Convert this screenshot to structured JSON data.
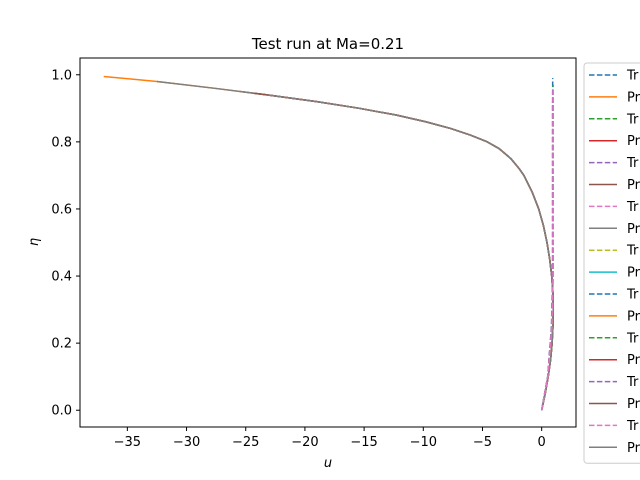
{
  "chart_data": {
    "type": "line",
    "title": "Test run at Ma=0.21",
    "xlabel": "u",
    "ylabel": "η",
    "xlim": [
      -39,
      2.9
    ],
    "ylim": [
      -0.05,
      1.05
    ],
    "xticks": [
      -35,
      -30,
      -25,
      -20,
      -15,
      -10,
      -5,
      0
    ],
    "xtick_labels": [
      "−35",
      "−30",
      "−25",
      "−20",
      "−15",
      "−10",
      "−5",
      "0"
    ],
    "yticks": [
      0.0,
      0.2,
      0.4,
      0.6,
      0.8,
      1.0
    ],
    "ytick_labels": [
      "0.0",
      "0.2",
      "0.4",
      "0.6",
      "0.8",
      "1.0"
    ],
    "grid": false,
    "legend_position": "right, clipped",
    "base_curve": {
      "y": [
        0,
        0.05,
        0.1,
        0.15,
        0.2,
        0.25,
        0.3,
        0.35,
        0.4,
        0.45,
        0.5,
        0.55,
        0.6,
        0.65,
        0.7,
        0.72,
        0.75,
        0.78,
        0.8,
        0.82,
        0.84,
        0.86,
        0.88,
        0.9,
        0.92,
        0.94,
        0.96,
        0.98,
        0.995
      ],
      "x": [
        0,
        0.3,
        0.55,
        0.75,
        0.88,
        0.95,
        0.98,
        0.95,
        0.85,
        0.68,
        0.45,
        0.15,
        -0.25,
        -0.8,
        -1.5,
        -1.9,
        -2.6,
        -3.6,
        -4.6,
        -6.0,
        -7.7,
        -9.8,
        -12.3,
        -15.4,
        -19.0,
        -23.2,
        -27.7,
        -32.5,
        -37
      ]
    },
    "series": [
      {
        "legend_label": "Tr",
        "color": "#1f77b4",
        "dashed": true,
        "kind": "vertical",
        "x": 0.93,
        "ytop": 0.99
      },
      {
        "legend_label": "Pr",
        "color": "#ff7f0e",
        "dashed": false,
        "kind": "curve",
        "ytop": 0.995
      },
      {
        "legend_label": "Tr",
        "color": "#2ca02c",
        "dashed": true,
        "kind": "vertical",
        "x": 0.96,
        "ytop": 0.97
      },
      {
        "legend_label": "Pr",
        "color": "#d62728",
        "dashed": false,
        "kind": "curve",
        "ytop": 0.945
      },
      {
        "legend_label": "Tr",
        "color": "#9467bd",
        "dashed": true,
        "kind": "vertical",
        "x": 0.95,
        "ytop": 0.95
      },
      {
        "legend_label": "Pr",
        "color": "#8c564b",
        "dashed": false,
        "kind": "curve",
        "ytop": 0.95
      },
      {
        "legend_label": "Tr",
        "color": "#e377c2",
        "dashed": true,
        "kind": "vertical",
        "x": 0.92,
        "ytop": 0.92
      },
      {
        "legend_label": "Pr",
        "color": "#7f7f7f",
        "dashed": false,
        "kind": "curve",
        "ytop": 0.98
      },
      {
        "legend_label": "Tr",
        "color": "#bcbd22",
        "dashed": true,
        "kind": "vertical",
        "x": 0.97,
        "ytop": 0.94
      },
      {
        "legend_label": "Pr",
        "color": "#17becf",
        "dashed": false,
        "kind": "curve",
        "ytop": 0.92
      },
      {
        "legend_label": "Tr",
        "color": "#1f77b4",
        "dashed": true,
        "kind": "vertical",
        "x": 0.94,
        "ytop": 0.96
      },
      {
        "legend_label": "Pr",
        "color": "#ff7f0e",
        "dashed": false,
        "kind": "curve",
        "ytop": 0.915
      },
      {
        "legend_label": "Tr",
        "color": "#2ca02c",
        "dashed": true,
        "kind": "vertical",
        "x": 0.95,
        "ytop": 0.93
      },
      {
        "legend_label": "Pr",
        "color": "#d62728",
        "dashed": false,
        "kind": "curve",
        "ytop": 0.94
      },
      {
        "legend_label": "Tr",
        "color": "#9467bd",
        "dashed": true,
        "kind": "vertical",
        "x": 0.93,
        "ytop": 0.95
      },
      {
        "legend_label": "Pr",
        "color": "#8c564b",
        "dashed": false,
        "kind": "curve",
        "ytop": 0.945
      },
      {
        "legend_label": "Tr",
        "color": "#e377c2",
        "dashed": true,
        "kind": "vertical",
        "x": 0.96,
        "ytop": 0.96
      },
      {
        "legend_label": "Pr",
        "color": "#7f7f7f",
        "dashed": false,
        "kind": "curve",
        "ytop": 0.94
      }
    ]
  }
}
